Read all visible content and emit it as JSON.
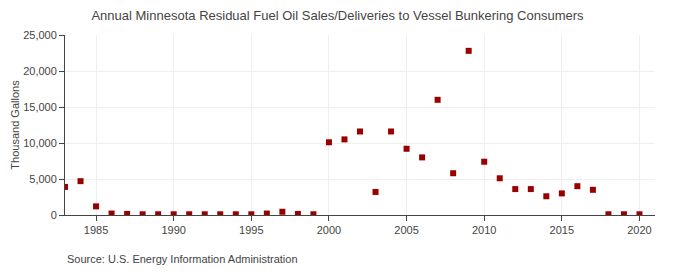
{
  "chart_data": {
    "type": "scatter",
    "title": "Annual Minnesota Residual Fuel Oil Sales/Deliveries to Vessel Bunkering Consumers",
    "ylabel": "Thousand Gallons",
    "annotations": [
      "Source: U.S. Energy Information Administration"
    ],
    "x": [
      1983,
      1984,
      1985,
      1986,
      1987,
      1988,
      1989,
      1990,
      1991,
      1992,
      1993,
      1994,
      1995,
      1996,
      1997,
      1998,
      1999,
      2000,
      2001,
      2002,
      2003,
      2004,
      2005,
      2006,
      2007,
      2008,
      2009,
      2010,
      2011,
      2012,
      2013,
      2014,
      2015,
      2016,
      2017,
      2018,
      2019,
      2020
    ],
    "values": [
      3900,
      4700,
      1200,
      200,
      150,
      100,
      100,
      100,
      100,
      100,
      100,
      100,
      100,
      200,
      450,
      150,
      100,
      10100,
      10500,
      11600,
      3200,
      11600,
      9200,
      8000,
      16000,
      5800,
      22800,
      7400,
      5100,
      3600,
      3600,
      2600,
      3000,
      4000,
      3500,
      100,
      100,
      100
    ],
    "color": "#990000",
    "marker": "square",
    "xlim": [
      1983,
      2021
    ],
    "ylim": [
      0,
      25000
    ],
    "xticks": [
      1985,
      1990,
      1995,
      2000,
      2005,
      2010,
      2015,
      2020
    ],
    "yticks": [
      0,
      {
        "value": 5000,
        "label": "5,000"
      },
      {
        "value": 10000,
        "label": "10,000"
      },
      {
        "value": 15000,
        "label": "15,000"
      },
      {
        "value": 20000,
        "label": "20,000"
      },
      {
        "value": 25000,
        "label": "25,000"
      }
    ],
    "grid": true
  }
}
